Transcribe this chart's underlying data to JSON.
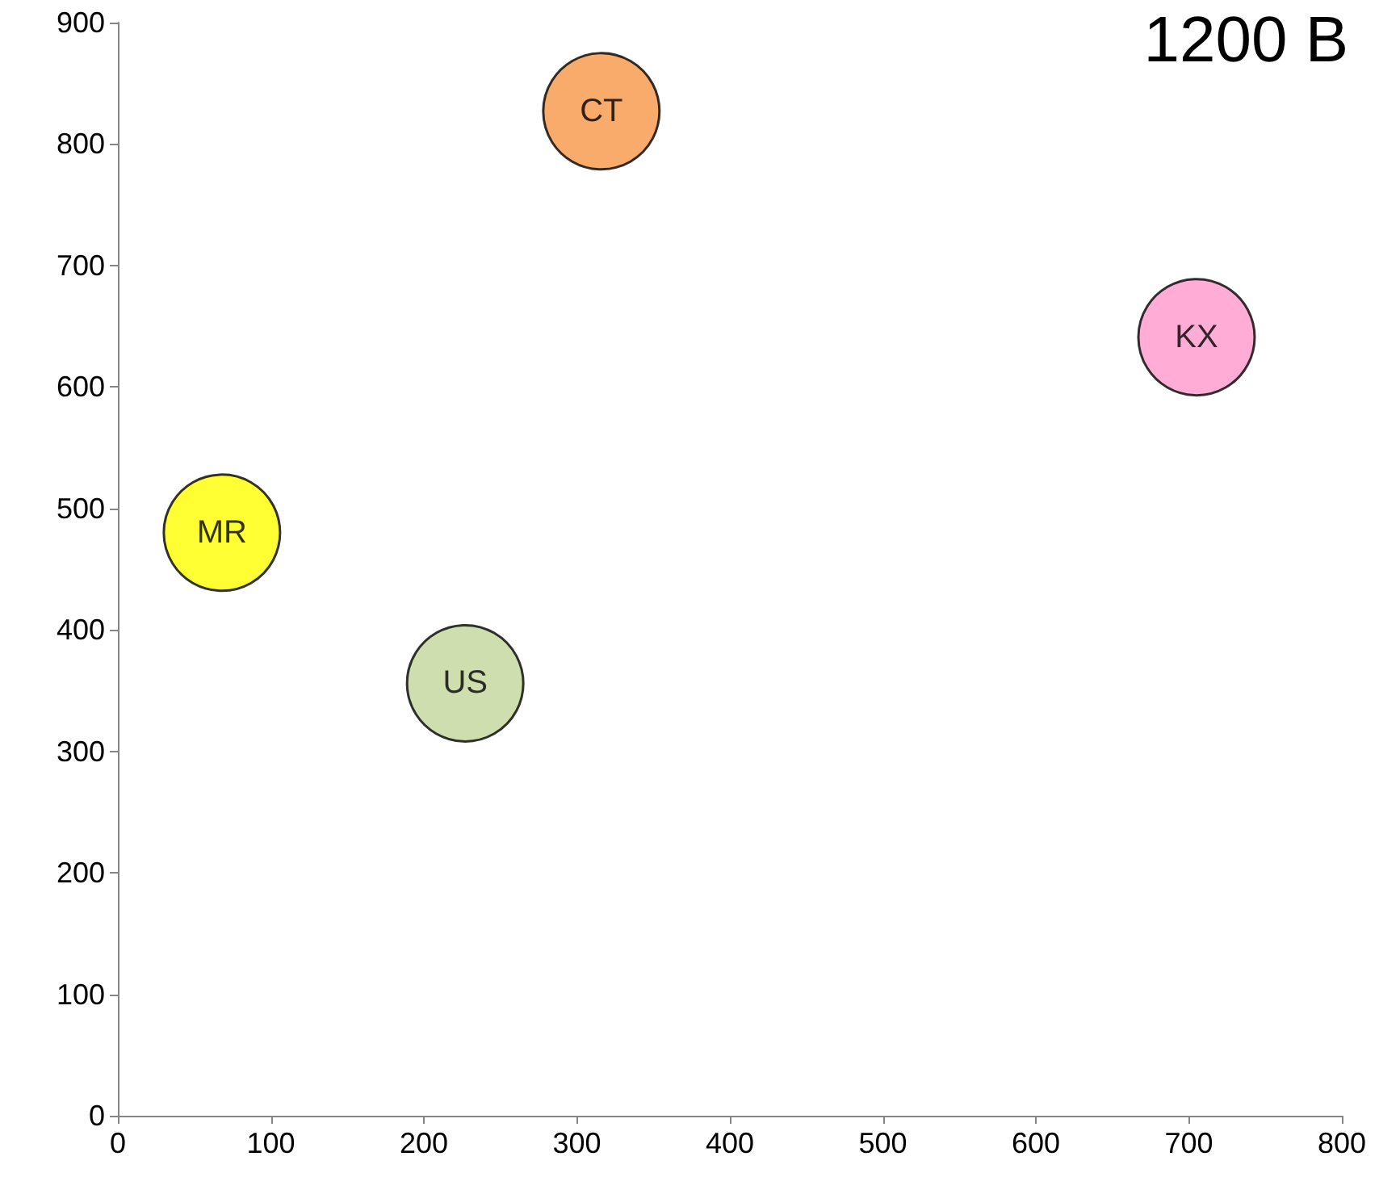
{
  "chart_data": {
    "type": "scatter",
    "title": "1200 B",
    "marker": "circle",
    "grid": false,
    "xlim": [
      0,
      800
    ],
    "xticks": [
      0,
      100,
      200,
      300,
      400,
      500,
      600,
      700,
      800
    ],
    "ylim": [
      0,
      900
    ],
    "yticks": [
      0,
      100,
      200,
      300,
      400,
      500,
      600,
      700,
      800,
      900
    ],
    "series": [
      {
        "name": "MR",
        "color": "#ffff00",
        "x": [
          68
        ],
        "values": [
          480
        ]
      },
      {
        "name": "US",
        "color": "#c3d69b",
        "x": [
          227
        ],
        "values": [
          356
        ]
      },
      {
        "name": "CT",
        "color": "#f79646",
        "x": [
          316
        ],
        "values": [
          827
        ]
      },
      {
        "name": "KX",
        "color": "#ff99cc",
        "x": [
          705
        ],
        "values": [
          641
        ]
      }
    ]
  }
}
